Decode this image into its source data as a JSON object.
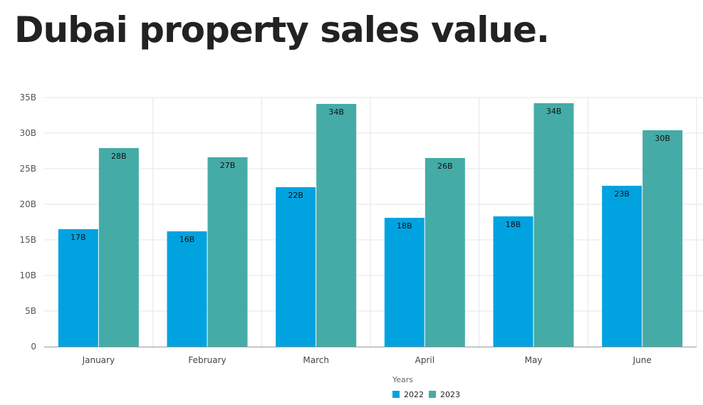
{
  "title": "Dubai property sales value.",
  "chart_data": {
    "type": "bar",
    "categories": [
      "January",
      "February",
      "March",
      "April",
      "May",
      "June"
    ],
    "series": [
      {
        "name": "2022",
        "color": "#00a3e0",
        "values": [
          16.5,
          16.2,
          22.4,
          18.1,
          18.3,
          22.6
        ],
        "labels": [
          "17B",
          "16B",
          "22B",
          "18B",
          "18B",
          "23B"
        ]
      },
      {
        "name": "2023",
        "color": "#45aba6",
        "values": [
          27.9,
          26.6,
          34.1,
          26.5,
          34.2,
          30.4
        ],
        "labels": [
          "28B",
          "27B",
          "34B",
          "26B",
          "34B",
          "30B"
        ]
      }
    ],
    "ylim": [
      0,
      35
    ],
    "yticks": [
      0,
      5,
      10,
      15,
      20,
      25,
      30,
      35
    ],
    "ytick_labels": [
      "0",
      "5B",
      "10B",
      "15B",
      "20B",
      "25B",
      "30B",
      "35B"
    ],
    "legend_title": "Years",
    "legend_position": "bottom-center",
    "grid": true
  }
}
